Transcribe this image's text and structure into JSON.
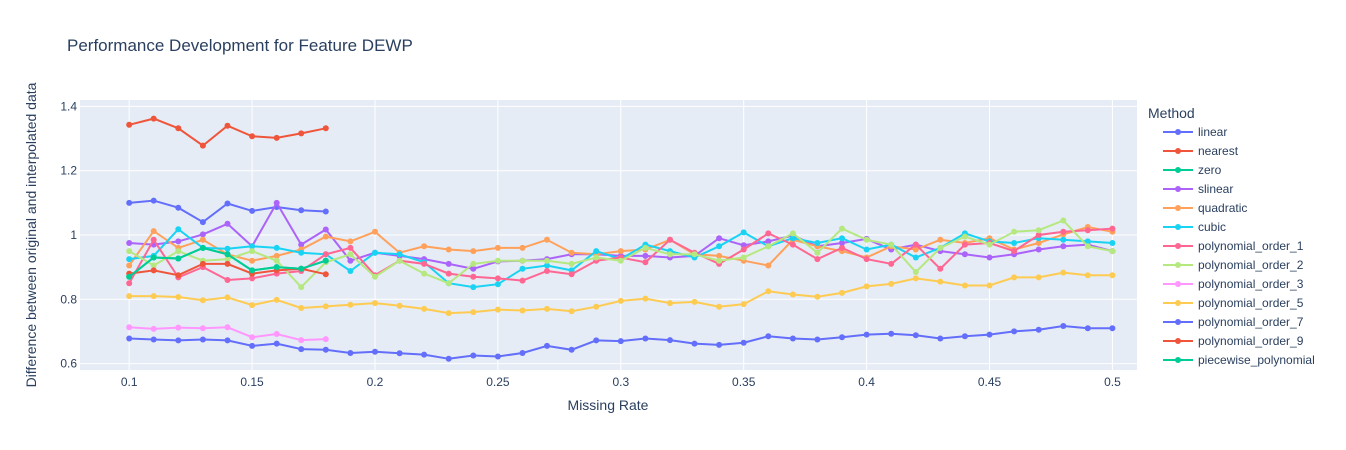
{
  "chart_data": {
    "type": "line",
    "title": "Performance Development for Feature DEWP",
    "xlabel": "Missing Rate",
    "ylabel": "Difference between original and interpolated data",
    "legend_title": "Method",
    "legend_position": "right",
    "grid": true,
    "xlim": [
      0.08,
      0.51
    ],
    "ylim": [
      0.58,
      1.42
    ],
    "x_ticks": [
      0.1,
      0.15,
      0.2,
      0.25,
      0.3,
      0.35,
      0.4,
      0.45,
      0.5
    ],
    "x_tick_labels": [
      "0.1",
      "0.15",
      "0.2",
      "0.25",
      "0.3",
      "0.35",
      "0.4",
      "0.45",
      "0.5"
    ],
    "y_ticks": [
      0.6,
      0.8,
      1.0,
      1.2,
      1.4
    ],
    "y_tick_labels": [
      "0.6",
      "0.8",
      "1",
      "1.2",
      "1.4"
    ],
    "series": [
      {
        "name": "linear",
        "color": "#636efa",
        "x_start": 0.1,
        "values": [
          1.1,
          1.107,
          1.085,
          1.04,
          1.098,
          1.075,
          1.087,
          1.077,
          1.073
        ]
      },
      {
        "name": "nearest",
        "color": "#EF553B",
        "x_start": 0.1,
        "values": [
          1.343,
          1.362,
          1.332,
          1.278,
          1.34,
          1.307,
          1.302,
          1.316,
          1.332
        ]
      },
      {
        "name": "zero",
        "color": "#00cc96",
        "x_start": 0.1,
        "values": [
          0.87,
          0.93,
          0.927,
          0.96,
          0.94,
          0.89,
          0.9,
          0.895,
          0.92
        ]
      },
      {
        "name": "slinear",
        "color": "#ab63fa",
        "x_start": 0.1,
        "values": [
          0.975,
          0.97,
          0.98,
          1.002,
          1.035,
          0.965,
          1.1,
          0.97,
          1.017,
          0.92,
          0.945,
          0.935,
          0.925,
          0.91,
          0.895,
          0.918,
          0.92,
          0.925,
          0.94,
          0.94,
          0.935,
          0.935,
          0.93,
          0.935,
          0.99,
          0.968,
          0.98,
          0.998,
          0.965,
          0.975,
          0.988,
          0.955,
          0.97,
          0.95,
          0.94,
          0.93,
          0.94,
          0.955,
          0.965,
          0.97,
          0.95
        ]
      },
      {
        "name": "quadratic",
        "color": "#FFA15A",
        "x_start": 0.1,
        "values": [
          0.905,
          1.012,
          0.96,
          0.985,
          0.94,
          0.92,
          0.935,
          0.955,
          0.995,
          0.98,
          1.01,
          0.945,
          0.965,
          0.955,
          0.95,
          0.96,
          0.96,
          0.985,
          0.945,
          0.94,
          0.95,
          0.955,
          0.985,
          0.94,
          0.935,
          0.92,
          0.905,
          0.985,
          0.965,
          0.95,
          0.93,
          0.965,
          0.955,
          0.985,
          0.975,
          0.99,
          0.955,
          0.975,
          1.002,
          1.025,
          1.01
        ]
      },
      {
        "name": "cubic",
        "color": "#19d3f3",
        "x_start": 0.1,
        "values": [
          0.925,
          0.935,
          1.018,
          0.96,
          0.957,
          0.965,
          0.96,
          0.945,
          0.94,
          0.888,
          0.945,
          0.94,
          0.915,
          0.85,
          0.838,
          0.847,
          0.895,
          0.905,
          0.89,
          0.95,
          0.925,
          0.97,
          0.95,
          0.93,
          0.965,
          1.008,
          0.965,
          0.99,
          0.975,
          0.99,
          0.955,
          0.97,
          0.93,
          0.96,
          1.005,
          0.98,
          0.975,
          0.99,
          0.985,
          0.98,
          0.975
        ]
      },
      {
        "name": "polynomial_order_1",
        "color": "#FF6692",
        "x_start": 0.1,
        "values": [
          0.85,
          0.985,
          0.868,
          0.9,
          0.86,
          0.865,
          0.88,
          0.888,
          0.94,
          0.96,
          0.875,
          0.92,
          0.91,
          0.88,
          0.87,
          0.865,
          0.858,
          0.888,
          0.878,
          0.92,
          0.93,
          0.915,
          0.985,
          0.945,
          0.91,
          0.955,
          1.005,
          0.97,
          0.925,
          0.96,
          0.925,
          0.91,
          0.97,
          0.895,
          0.97,
          0.975,
          0.95,
          1.0,
          1.01,
          1.015,
          1.02
        ]
      },
      {
        "name": "polynomial_order_2",
        "color": "#B6E880",
        "x_start": 0.1,
        "values": [
          0.95,
          0.905,
          0.95,
          0.92,
          0.925,
          0.95,
          0.92,
          0.838,
          0.915,
          0.94,
          0.87,
          0.92,
          0.88,
          0.85,
          0.91,
          0.92,
          0.92,
          0.92,
          0.91,
          0.93,
          0.92,
          0.96,
          0.94,
          0.94,
          0.92,
          0.93,
          0.965,
          1.005,
          0.945,
          1.02,
          0.985,
          0.97,
          0.885,
          0.96,
          0.995,
          0.97,
          1.01,
          1.015,
          1.045,
          0.965,
          0.95
        ]
      },
      {
        "name": "polynomial_order_3",
        "color": "#FF97FF",
        "x_start": 0.1,
        "values": [
          0.713,
          0.708,
          0.712,
          0.71,
          0.713,
          0.682,
          0.692,
          0.673,
          0.676
        ]
      },
      {
        "name": "polynomial_order_5",
        "color": "#FECB52",
        "x_start": 0.1,
        "values": [
          0.81,
          0.81,
          0.807,
          0.797,
          0.806,
          0.782,
          0.798,
          0.773,
          0.778,
          0.783,
          0.788,
          0.78,
          0.77,
          0.757,
          0.76,
          0.768,
          0.765,
          0.77,
          0.763,
          0.777,
          0.795,
          0.802,
          0.788,
          0.792,
          0.777,
          0.785,
          0.825,
          0.815,
          0.808,
          0.82,
          0.84,
          0.848,
          0.865,
          0.855,
          0.843,
          0.843,
          0.868,
          0.868,
          0.883,
          0.875,
          0.875
        ]
      },
      {
        "name": "polynomial_order_7",
        "color": "#636efa",
        "x_start": 0.1,
        "values": [
          0.678,
          0.675,
          0.672,
          0.675,
          0.672,
          0.655,
          0.662,
          0.645,
          0.643,
          0.633,
          0.637,
          0.632,
          0.628,
          0.615,
          0.625,
          0.622,
          0.633,
          0.655,
          0.643,
          0.672,
          0.67,
          0.678,
          0.673,
          0.662,
          0.658,
          0.665,
          0.685,
          0.678,
          0.675,
          0.682,
          0.69,
          0.693,
          0.688,
          0.678,
          0.685,
          0.69,
          0.7,
          0.705,
          0.717,
          0.71,
          0.71
        ]
      },
      {
        "name": "polynomial_order_9",
        "color": "#EF553B",
        "x_start": 0.1,
        "values": [
          0.88,
          0.89,
          0.875,
          0.91,
          0.91,
          0.88,
          0.89,
          0.895,
          0.878
        ]
      },
      {
        "name": "piecewise_polynomial",
        "color": "#00cc96",
        "x_start": 0.1,
        "values": [
          0.87,
          0.93,
          0.927,
          0.96,
          0.94,
          0.89,
          0.9,
          0.895,
          0.92
        ]
      }
    ]
  }
}
